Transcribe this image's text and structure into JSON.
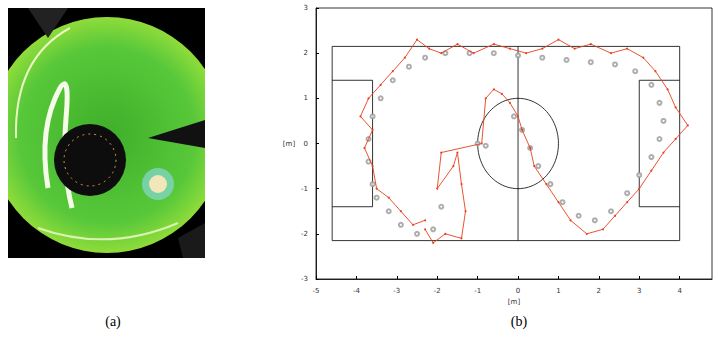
{
  "captions": [
    "(a)",
    "(b)"
  ],
  "chart_data": {
    "type": "line",
    "xlabel": "[m]",
    "ylabel": "[m]",
    "xlim": [
      -5,
      4.8
    ],
    "xticks": [
      -5,
      -4,
      -3,
      -2,
      -1,
      0,
      1,
      2,
      3,
      4
    ],
    "ylim": [
      -3,
      3
    ],
    "yticks": [
      -3,
      -2,
      -1,
      0,
      1,
      2,
      3
    ],
    "grid": false,
    "series": [
      {
        "type": "line",
        "color": "#e8401c",
        "marker": "dot",
        "x": [
          -2.3,
          -2.6,
          -2.9,
          -3.2,
          -3.5,
          -3.6,
          -3.8,
          -3.6,
          -3.9,
          -3.7,
          -3.4,
          -3.1,
          -2.8,
          -2.5,
          -2.2,
          -1.9,
          -1.5,
          -1.1,
          -0.6,
          -0.2,
          0.2,
          0.6,
          1.0,
          1.4,
          1.8,
          2.3,
          2.7,
          3.1,
          3.4,
          3.7,
          3.9,
          4.2,
          3.9,
          3.6,
          3.3,
          3.0,
          2.7,
          2.4,
          2.1,
          1.7,
          1.3,
          1.0,
          0.7,
          0.4,
          0.3,
          0.1,
          0.0,
          -0.2,
          -0.4,
          -0.6,
          -0.8,
          -0.9,
          -1.9,
          -2.0,
          -1.6,
          -1.5,
          -1.4,
          -1.3,
          -1.4,
          -1.8,
          -2.1,
          -2.3
        ],
        "y": [
          -1.7,
          -1.8,
          -1.5,
          -1.2,
          -1.0,
          -0.5,
          -0.1,
          0.3,
          0.6,
          1.0,
          1.3,
          1.6,
          1.9,
          2.3,
          2.1,
          2.0,
          2.2,
          2.0,
          2.2,
          2.1,
          2.0,
          2.1,
          2.3,
          2.1,
          2.2,
          2.0,
          2.1,
          1.9,
          1.6,
          1.2,
          0.8,
          0.4,
          0.1,
          -0.2,
          -0.6,
          -1.0,
          -1.3,
          -1.6,
          -1.9,
          -2.0,
          -1.7,
          -1.3,
          -0.9,
          -0.5,
          -0.1,
          0.3,
          0.6,
          0.9,
          1.1,
          1.2,
          1.0,
          0.0,
          -0.2,
          -1.0,
          -0.5,
          -0.2,
          -0.9,
          -1.5,
          -2.1,
          -2.0,
          -2.2,
          -1.9
        ]
      },
      {
        "type": "scatter",
        "color": "#999999",
        "marker": "circle",
        "x": [
          -3.6,
          -3.7,
          -3.7,
          -3.6,
          -3.4,
          -3.1,
          -2.7,
          -2.3,
          -1.8,
          -1.2,
          -0.6,
          0.0,
          0.6,
          1.2,
          1.8,
          2.4,
          2.9,
          3.3,
          3.5,
          3.6,
          3.5,
          3.3,
          3.0,
          2.7,
          2.3,
          1.9,
          1.5,
          1.1,
          0.8,
          0.5,
          0.3,
          0.1,
          -0.1,
          -0.8,
          -1.0,
          -1.9,
          -2.1,
          -2.5,
          -2.9,
          -3.2,
          -3.5
        ],
        "y": [
          -0.9,
          -0.4,
          0.1,
          0.6,
          1.0,
          1.4,
          1.7,
          1.9,
          2.0,
          2.0,
          2.0,
          1.95,
          1.9,
          1.85,
          1.8,
          1.75,
          1.6,
          1.3,
          0.9,
          0.5,
          0.1,
          -0.3,
          -0.7,
          -1.1,
          -1.5,
          -1.7,
          -1.6,
          -1.3,
          -0.9,
          -0.5,
          -0.1,
          0.3,
          0.6,
          -0.05,
          0.0,
          -1.4,
          -1.9,
          -2.0,
          -1.8,
          -1.5,
          -1.2
        ]
      }
    ],
    "field_lines": [
      {
        "x": [
          -4.6,
          4.0,
          4.0,
          -4.6,
          -4.6
        ],
        "y": [
          2.15,
          2.15,
          -2.15,
          -2.15,
          2.15
        ]
      },
      {
        "x": [
          0,
          0
        ],
        "y": [
          2.15,
          -2.15
        ]
      },
      {
        "x": [
          -4.6,
          -3.6,
          -3.6,
          -4.6
        ],
        "y": [
          1.4,
          1.4,
          -1.4,
          -1.4
        ]
      },
      {
        "x": [
          4.0,
          3.0,
          3.0,
          4.0
        ],
        "y": [
          1.4,
          1.4,
          -1.4,
          -1.4
        ]
      }
    ],
    "center_circle": {
      "x": 0,
      "y": 0,
      "radius": 1.0
    }
  }
}
